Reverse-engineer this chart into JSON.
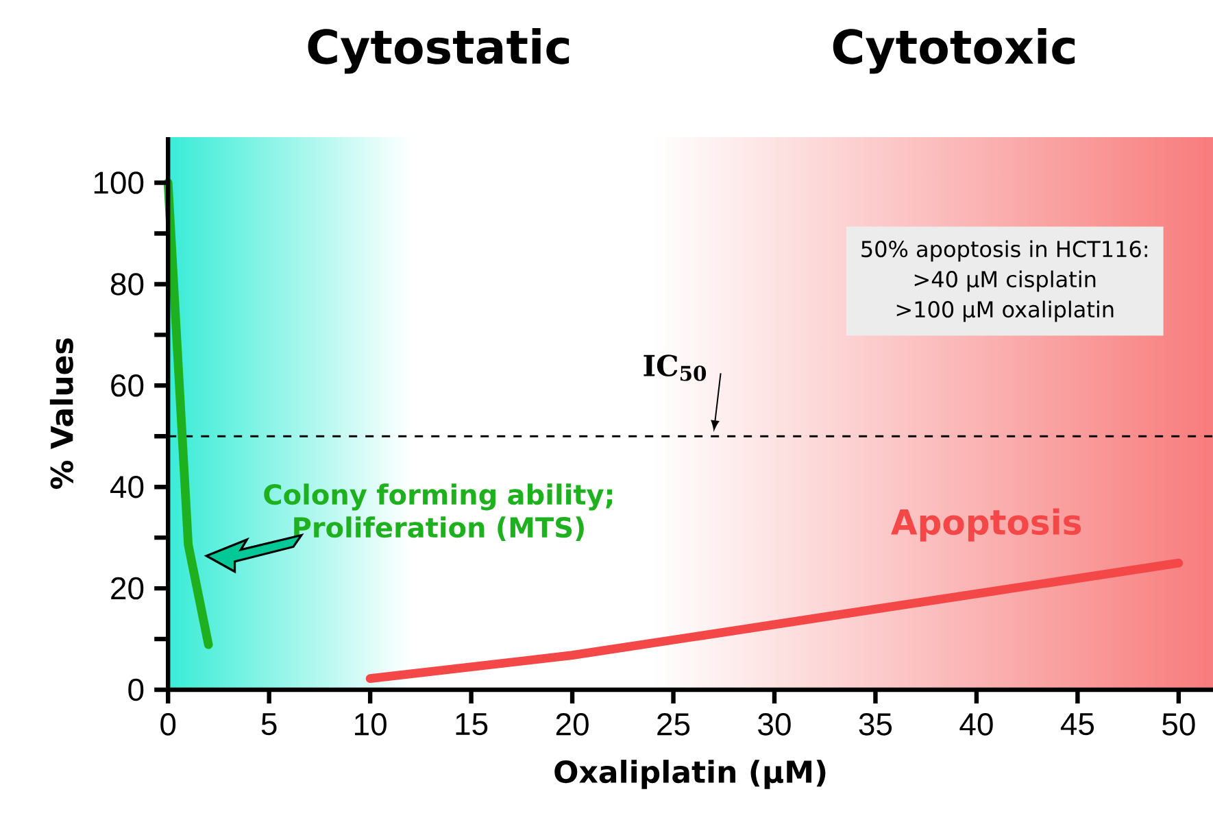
{
  "chart_data": {
    "type": "line",
    "xlabel": "Oxaliplatin (μM)",
    "ylabel": "% Values",
    "annotations": [
      "Cytostatic",
      "Cytotoxic",
      "50% apoptosis in HCT116:",
      ">40 μM cisplatin",
      ">100 μM oxaliplatin"
    ],
    "series": [
      {
        "name": "Colony forming ability; Proliferation (MTS)",
        "color": "#1eb01e",
        "x": [
          0,
          1,
          2
        ],
        "values": [
          100,
          28.6,
          8.9
        ]
      },
      {
        "name": "Apoptosis",
        "color": "#f44848",
        "x": [
          10,
          20,
          50
        ],
        "values": [
          2.2,
          6.8,
          25
        ]
      }
    ],
    "xlim": [
      0,
      51.7
    ],
    "ylim": [
      0,
      109
    ],
    "xticks": [
      0,
      5,
      10,
      15,
      20,
      25,
      30,
      35,
      40,
      45,
      50
    ],
    "yticks": [
      0,
      {
        "value": 10,
        "label": null
      },
      20,
      {
        "value": 30,
        "label": null
      },
      40,
      {
        "value": 50,
        "label": null
      },
      60,
      {
        "value": 70,
        "label": null
      },
      80,
      {
        "value": 90,
        "label": null
      },
      100
    ],
    "ref_lines": [
      {
        "axis": "y",
        "value": 50,
        "label": "IC$_{50}$",
        "color": "#000000",
        "line_style": "dashed"
      }
    ],
    "bands": [
      {
        "axis": "x",
        "from": 0,
        "to": 12,
        "color": "#38ecd6"
      },
      {
        "axis": "x",
        "from": 24,
        "to": 51.7,
        "color": "#f87c7c"
      }
    ],
    "grid": false,
    "marker": "none",
    "line_style": "solid"
  }
}
